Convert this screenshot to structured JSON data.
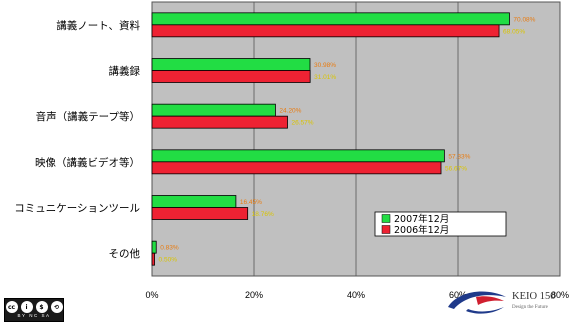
{
  "chart_data": {
    "type": "bar",
    "orientation": "horizontal",
    "categories": [
      "講義ノート、資料",
      "講義録",
      "音声（講義テープ等）",
      "映像（講義ビデオ等）",
      "コミュニケーションツール",
      "その他"
    ],
    "series": [
      {
        "name": "2007年12月",
        "color": "#22dd44",
        "values": [
          70.08,
          30.98,
          24.2,
          57.33,
          16.45,
          0.83
        ],
        "labels": [
          "70.08%",
          "30.98%",
          "24.20%",
          "57.33%",
          "16.45%",
          "0.83%"
        ]
      },
      {
        "name": "2006年12月",
        "color": "#ee2233",
        "values": [
          68.05,
          31.01,
          26.57,
          56.67,
          18.76,
          0.5
        ],
        "labels": [
          "68.05%",
          "31.01%",
          "26.57%",
          "56.67%",
          "18.76%",
          "0.50%"
        ]
      }
    ],
    "xlim": [
      0,
      80
    ],
    "xticks": [
      "0%",
      "20%",
      "40%",
      "60%",
      "80%"
    ],
    "grid": true,
    "legend_position": "lower-right",
    "plot_background": "#c0c0c0"
  },
  "footer": {
    "license_text": "BY  NC  SA",
    "license_icons": [
      "cc",
      "i",
      "$",
      "⟲"
    ],
    "logo_text": "KEIO 150",
    "logo_sub": "Design the Future"
  }
}
